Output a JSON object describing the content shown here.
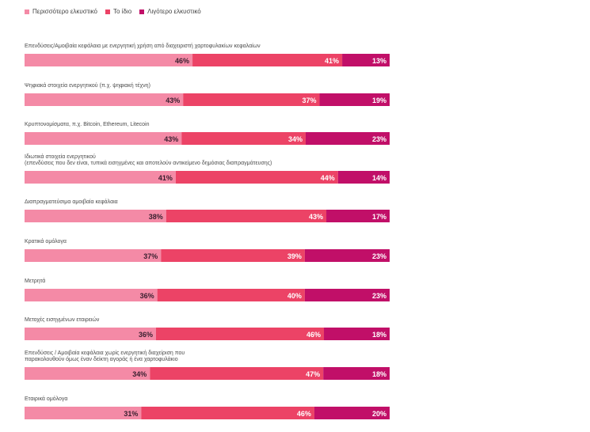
{
  "colors": {
    "more_attractive": "#f48aa6",
    "same": "#ec4366",
    "less_attractive": "#c10f68",
    "text_on_light": "#3a2030",
    "text_on_dark": "#ffffff"
  },
  "legend": [
    "Περισσότερο ελκυστικό",
    "Το ίδιο",
    "Λιγότερο ελκυστικό"
  ],
  "chart_data": {
    "type": "bar",
    "orientation": "horizontal",
    "stacked": true,
    "percent_unit": "%",
    "categories": [
      [
        "Επενδύσεις/Αμοιβαία κεφάλαια με ενεργητική χρήση από διαχειριστή χαρτοφυλακίων κεφαλαίων"
      ],
      [
        "Ψηφιακά στοιχεία ενεργητικού (π.χ. ψηφιακή τέχνη)"
      ],
      [
        "Κρυπτονομίσματα, π.χ. Bitcoin, Ethereum, Litecoin"
      ],
      [
        "Ιδιωτικά στοιχεία ενεργητικού",
        "(επενδύσεις που δεν είναι, τυπικά εισηγμένες και αποτελούν αντικείμενο δημόσιας διαπραγμάτευσης)"
      ],
      [
        "Διαπραγματεύσιμα αμοιβαία κεφάλαια"
      ],
      [
        "Κρατικά ομόλογα"
      ],
      [
        "Μετρητά"
      ],
      [
        "Μετοχές εισηγμένων εταιρειών"
      ],
      [
        "Επενδύσεις / Αμοιβαία κεφάλαια χωρίς ενεργητική διαχείριση που",
        "παρακολουθούν όμως έναν δείκτη αγοράς ή ένα χαρτοφυλάκιο"
      ],
      [
        "Εταιρικά ομόλογα"
      ]
    ],
    "series": [
      {
        "name": "Περισσότερο ελκυστικό",
        "values": [
          46,
          43,
          43,
          41,
          38,
          37,
          36,
          36,
          34,
          31
        ]
      },
      {
        "name": "Το ίδιο",
        "values": [
          41,
          37,
          34,
          44,
          43,
          39,
          40,
          46,
          47,
          46
        ]
      },
      {
        "name": "Λιγότερο ελκυστικό",
        "values": [
          13,
          19,
          23,
          14,
          17,
          23,
          23,
          18,
          18,
          20
        ]
      }
    ]
  }
}
